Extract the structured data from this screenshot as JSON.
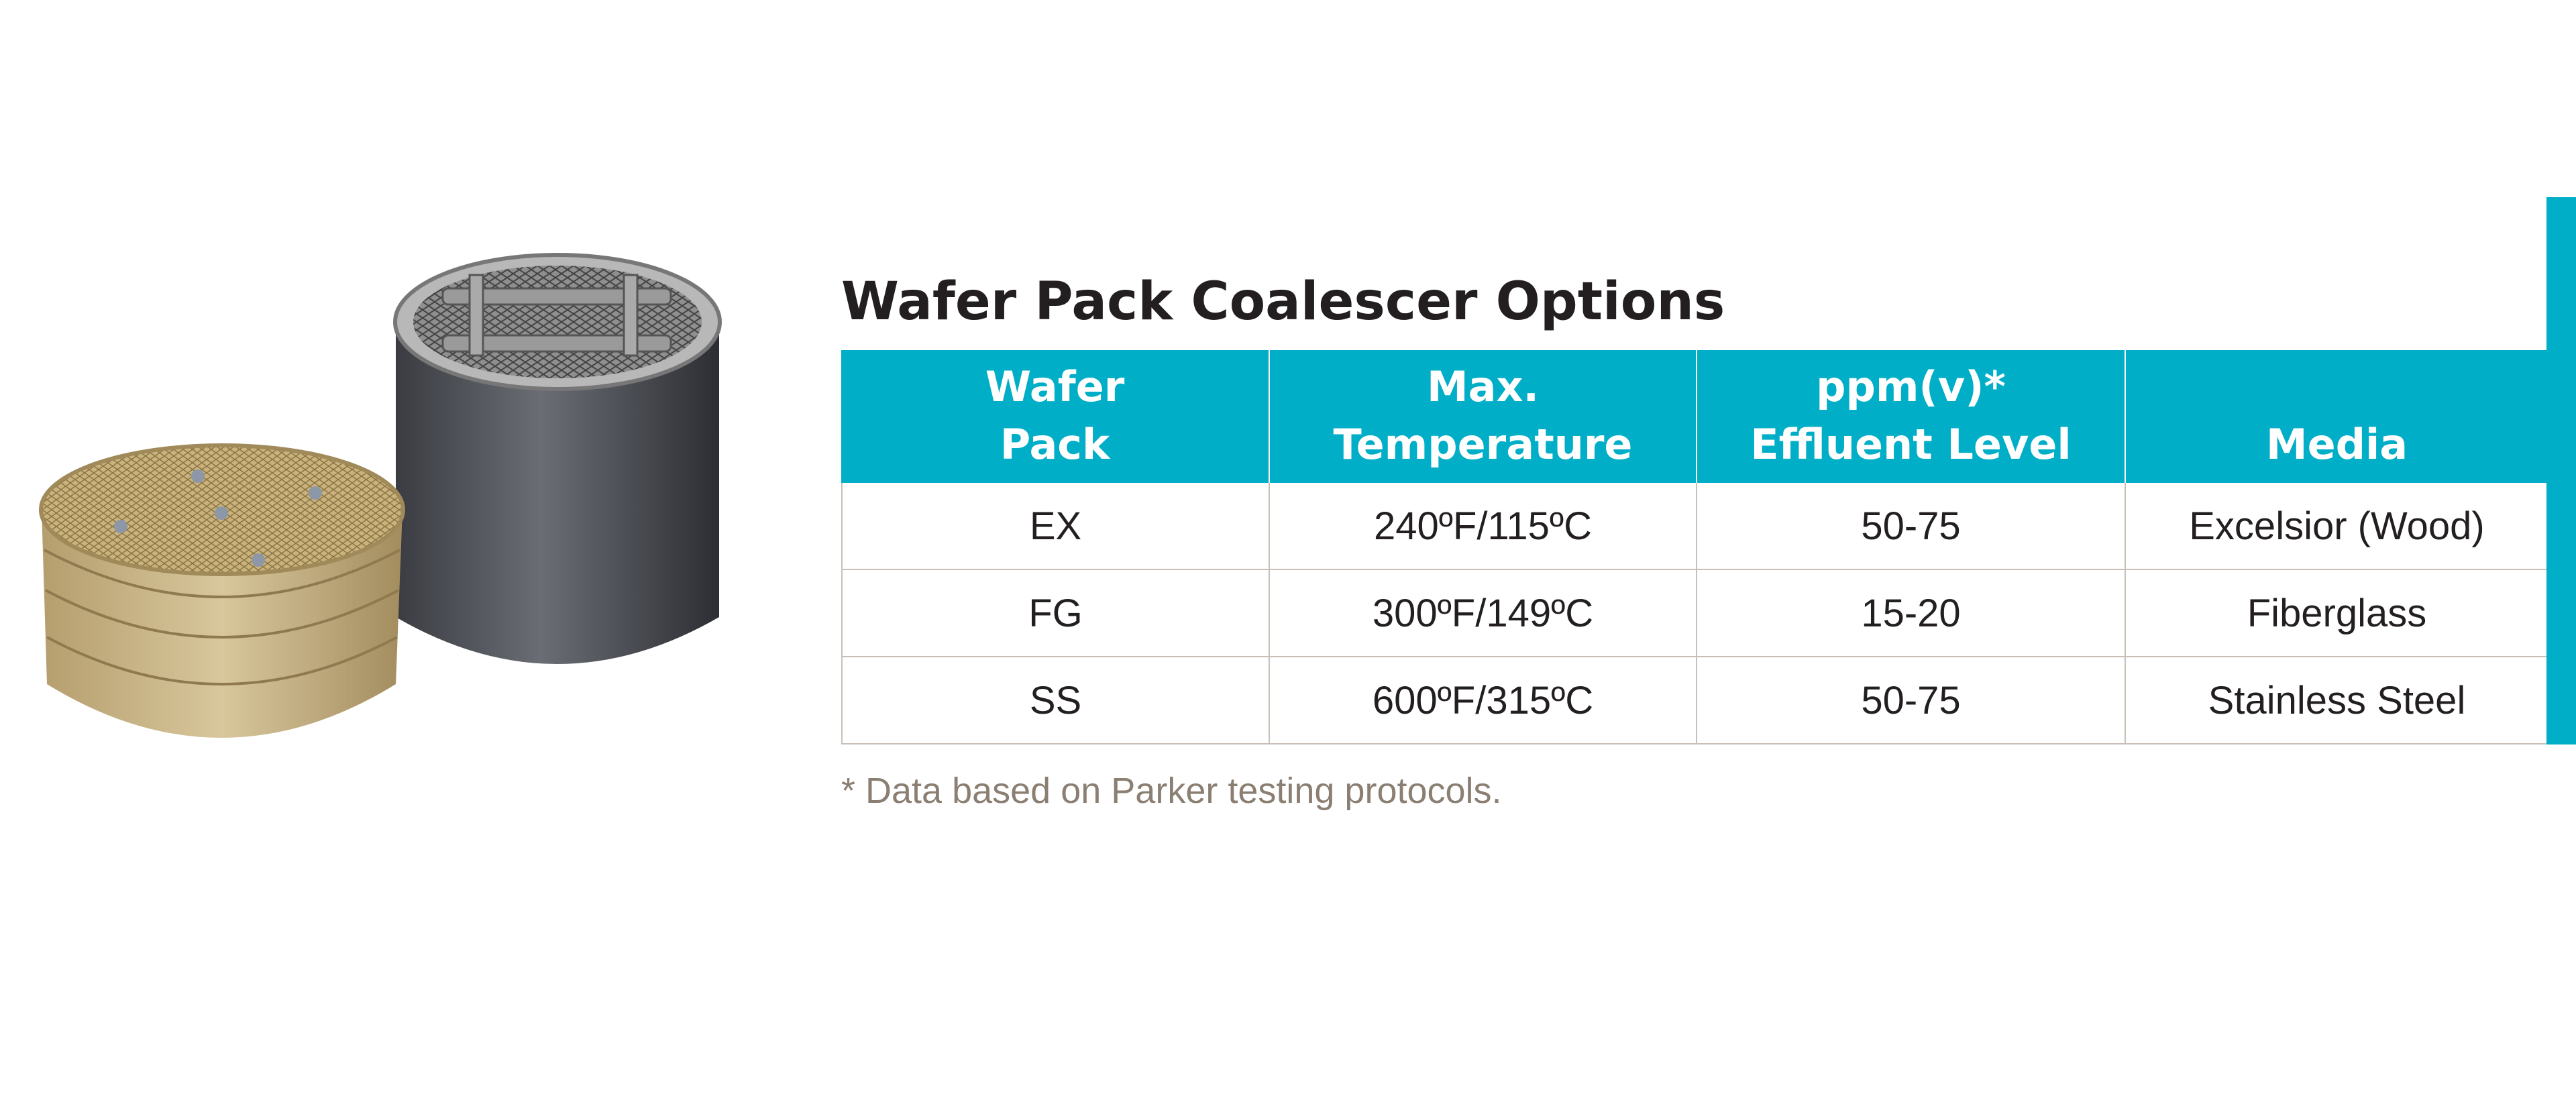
{
  "title": "Wafer Pack Coalescer Options",
  "table": {
    "header": [
      [
        "Wafer",
        "Pack"
      ],
      [
        "Max.",
        "Temperature"
      ],
      [
        "ppm(v)*",
        "Effluent Level"
      ],
      [
        "Media"
      ]
    ],
    "rows": [
      [
        "EX",
        "240ºF/115ºC",
        "50-75",
        "Excelsior (Wood)"
      ],
      [
        "FG",
        "300ºF/149ºC",
        "15-20",
        "Fiberglass"
      ],
      [
        "SS",
        "600ºF/315ºC",
        "50-75",
        "Stainless Steel"
      ]
    ]
  },
  "footnote": "* Data based on Parker testing protocols."
}
